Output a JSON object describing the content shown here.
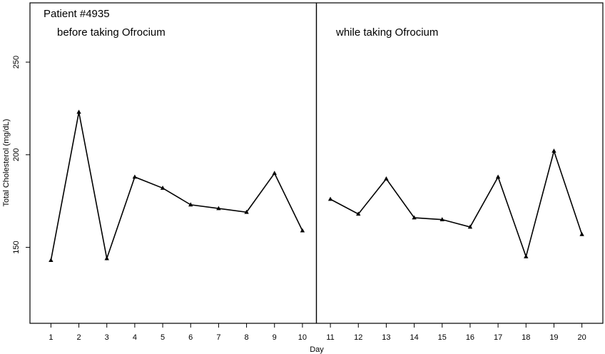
{
  "chart_data": {
    "type": "line",
    "xlabel": "Day",
    "ylabel": "Total Cholesterol (mg/dL)",
    "x": [
      1,
      2,
      3,
      4,
      5,
      6,
      7,
      8,
      9,
      10,
      11,
      12,
      13,
      14,
      15,
      16,
      17,
      18,
      19,
      20
    ],
    "series": [
      {
        "values": [
          143,
          223,
          144,
          188,
          182,
          173,
          171,
          169,
          190,
          159
        ],
        "x": [
          1,
          2,
          3,
          4,
          5,
          6,
          7,
          8,
          9,
          10
        ]
      },
      {
        "values": [
          176,
          168,
          187,
          166,
          165,
          161,
          188,
          145,
          202,
          157
        ],
        "x": [
          11,
          12,
          13,
          14,
          15,
          16,
          17,
          18,
          19,
          20
        ]
      }
    ],
    "xticks": [
      "1",
      "2",
      "3",
      "4",
      "5",
      "6",
      "7",
      "8",
      "9",
      "10",
      "11",
      "12",
      "13",
      "14",
      "15",
      "16",
      "17",
      "18",
      "19",
      "20"
    ],
    "yticks": [
      "150",
      "200",
      "250"
    ],
    "yticks_values": [
      150,
      200,
      250
    ],
    "xlim": [
      0.25,
      20.75
    ],
    "ylim": [
      109,
      282
    ],
    "phase_divider_x": 10.5,
    "annotations": {
      "patient": "Patient #4935",
      "before": "before taking Ofrocium",
      "while": "while taking Ofrocium"
    },
    "line_color": "#000000",
    "grid": false
  }
}
